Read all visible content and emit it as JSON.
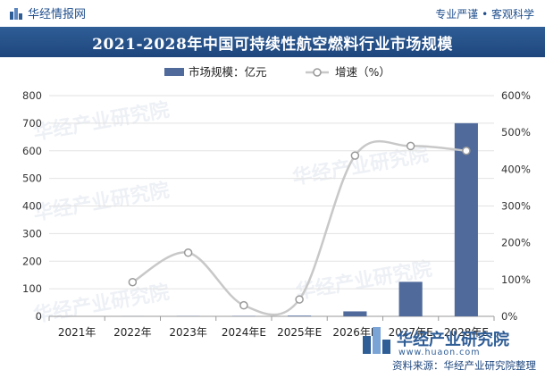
{
  "header": {
    "brand": "华经情报网",
    "slogan": "专业严谨 • 客观科学"
  },
  "title": "2021-2028年中国可持续性航空燃料行业市场规模",
  "watermark": "华经产业研究院",
  "footer": {
    "logo_text": "华经产业研究院",
    "logo_url": "www.huaon.com",
    "source": "资料来源：华经产业研究院整理"
  },
  "colors": {
    "bar": "#4f6a9b",
    "line": "#c8c8c8",
    "title_bg": "#1e467d",
    "accent": "#2f5d96"
  },
  "chart_data": {
    "type": "bar",
    "categories": [
      "2021年",
      "2022年",
      "2023年",
      "2024年E",
      "2025年E",
      "2026年E",
      "2027年E",
      "2028年E"
    ],
    "series": [
      {
        "name": "市场规模：亿元",
        "type": "bar",
        "axis": "left",
        "values": [
          0,
          0.3,
          0.8,
          1.2,
          2.5,
          18,
          125,
          700
        ]
      },
      {
        "name": "增速（%）",
        "type": "line",
        "axis": "right",
        "values": [
          null,
          93,
          173,
          30,
          46,
          437,
          463,
          450
        ]
      }
    ],
    "y_left": {
      "min": 0,
      "max": 800,
      "ticks": [
        "0",
        "100",
        "200",
        "300",
        "400",
        "500",
        "600",
        "700",
        "800"
      ]
    },
    "y_right": {
      "min": 0,
      "max": 600,
      "ticks": [
        "0%",
        "100%",
        "200%",
        "300%",
        "400%",
        "500%",
        "600%"
      ]
    },
    "grid": true,
    "legend": "top-center"
  }
}
